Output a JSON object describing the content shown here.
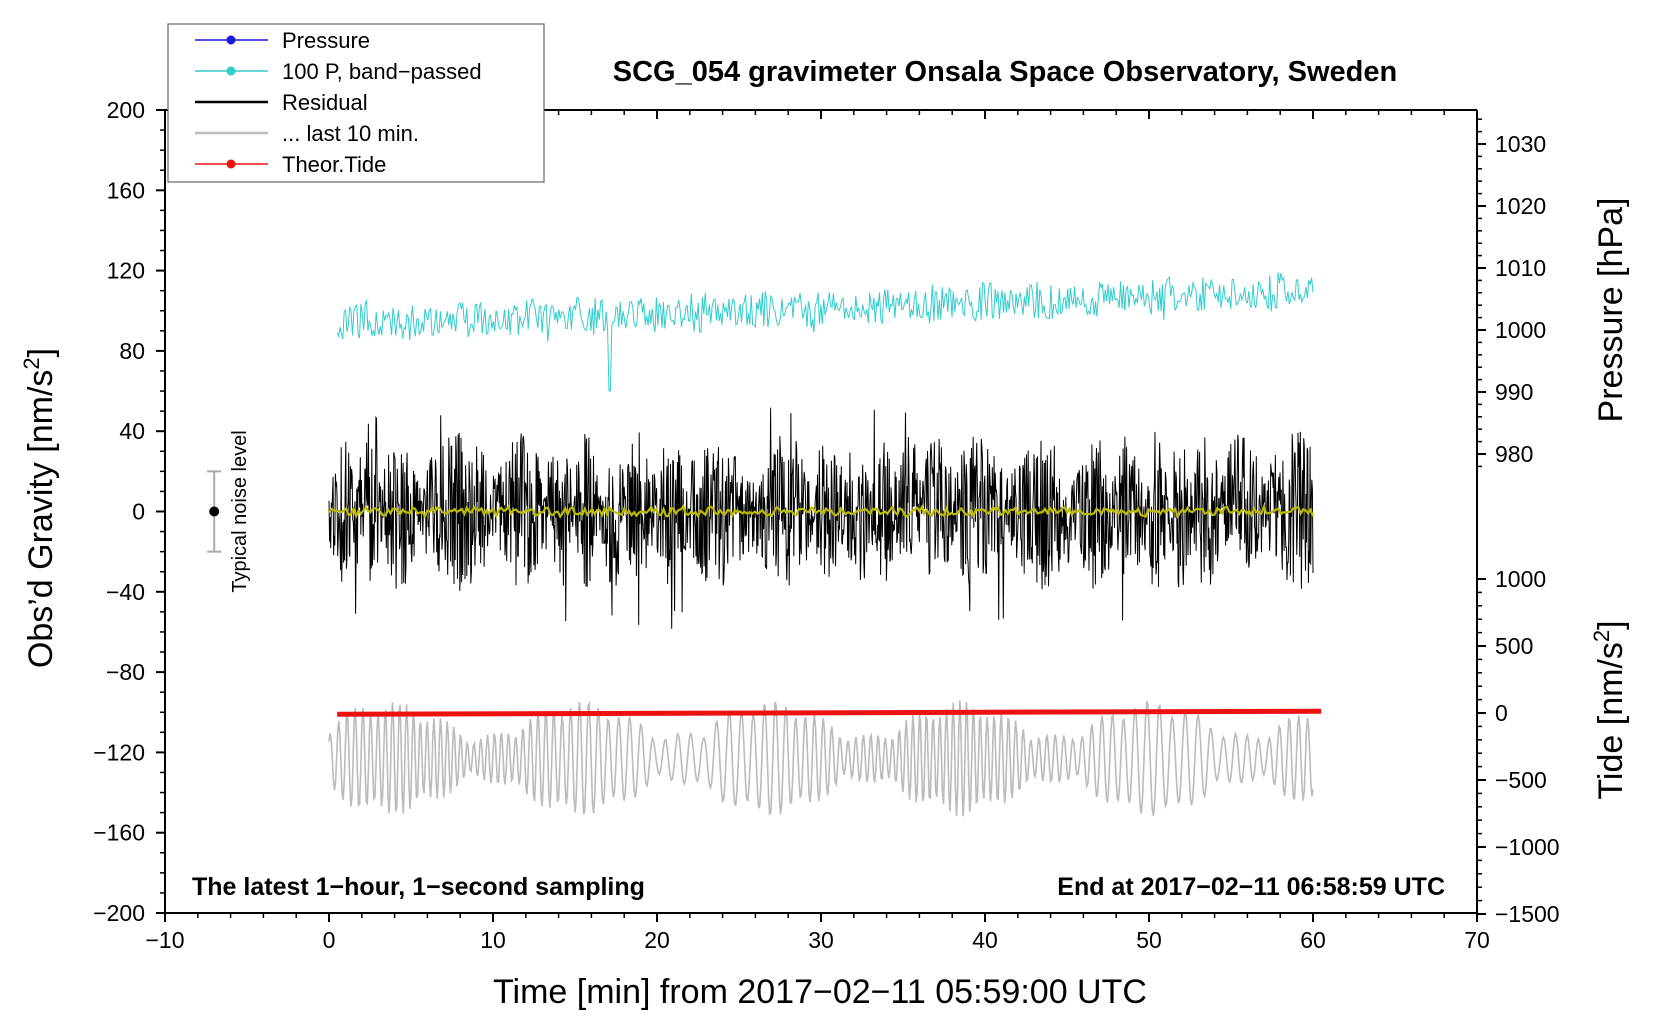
{
  "chart_data": {
    "type": "line",
    "title": "SCG_054 gravimeter Onsala Space Observatory, Sweden",
    "xlabel": "Time [min] from 2017−02−11 05:59:00 UTC",
    "ylabel_left_main": "Obs’d Gravity [nm/s",
    "ylabel_left_sup": "2",
    "ylabel_left_end": "]",
    "ylabel_right_pressure": "Pressure [hPa]",
    "ylabel_right_tide_main": "Tide [nm/s",
    "ylabel_right_tide_sup": "2",
    "ylabel_right_tide_end": "]",
    "xlim": [
      -10,
      70
    ],
    "ylim_left": [
      -200,
      200
    ],
    "ylim_pressure_ticks": [
      980,
      1030
    ],
    "ylim_tide_ticks": [
      -1500,
      1000
    ],
    "x_ticks": [
      -10,
      0,
      10,
      20,
      30,
      40,
      50,
      60,
      70
    ],
    "x_tick_labels": [
      "−10",
      "0",
      "10",
      "20",
      "30",
      "40",
      "50",
      "60",
      "70"
    ],
    "y_ticks_left": [
      200,
      160,
      120,
      80,
      40,
      0,
      -40,
      -80,
      -120,
      -160,
      -200
    ],
    "y_tick_labels_left": [
      "200",
      "160",
      "120",
      "80",
      "40",
      "0",
      "−40",
      "−80",
      "−120",
      "−160",
      "−200"
    ],
    "y_ticks_pressure": [
      1030,
      1020,
      1010,
      1000,
      990,
      980
    ],
    "y_tick_labels_pressure": [
      "1030",
      "1020",
      "1010",
      "1000",
      "990",
      "980"
    ],
    "y_ticks_tide": [
      1000,
      500,
      0,
      -500,
      -1000,
      -1500
    ],
    "y_tick_labels_tide": [
      "1000",
      "500",
      "0",
      "−500",
      "−1000",
      "−1500"
    ],
    "legend": [
      {
        "label": "Pressure",
        "color": "#1a1adf",
        "marker": true
      },
      {
        "label": "100 P, band−passed",
        "color": "#33cccc",
        "marker": true
      },
      {
        "label": "Residual",
        "color": "#000000",
        "marker": false
      },
      {
        "label": "... last 10 min.",
        "color": "#bbbbbb",
        "marker": false
      },
      {
        "label": "Theor.Tide",
        "color": "#ee1111",
        "marker": true
      }
    ],
    "series": [
      {
        "name": "100 P, band−passed",
        "color": "#33cccc",
        "x_range": [
          0.5,
          60
        ],
        "baseline_start": 93,
        "baseline_end": 110,
        "amplitude": 10,
        "spike_min": 60,
        "spike_max": 123,
        "axis": "left"
      },
      {
        "name": "Residual",
        "color": "#000000",
        "x_range": [
          0,
          60
        ],
        "baseline": 0,
        "amplitude": 40,
        "spike_min": -59,
        "spike_max": 52,
        "axis": "left"
      },
      {
        "name": "Residual smoothed",
        "color": "#bbbb00",
        "x_range": [
          0,
          60
        ],
        "baseline": 0,
        "amplitude": 2,
        "axis": "left"
      },
      {
        "name": "... last 10 min.",
        "color": "#bbbbbb",
        "x_range": [
          0,
          60
        ],
        "baseline": -123,
        "amplitude": 20,
        "spike_min": -167,
        "spike_max": -85,
        "axis": "left"
      },
      {
        "name": "Theor.Tide",
        "color": "#ee1111",
        "x": [
          0.5,
          60.5
        ],
        "y": [
          -101,
          -99.5
        ],
        "axis": "left"
      }
    ],
    "noise_level": {
      "label": "Typical noise level",
      "x": -7,
      "center": 0,
      "low": -20,
      "high": 20
    },
    "annotations": {
      "left": "The latest 1−hour, 1−second sampling",
      "right": "End at 2017−02−11 06:58:59 UTC"
    }
  }
}
